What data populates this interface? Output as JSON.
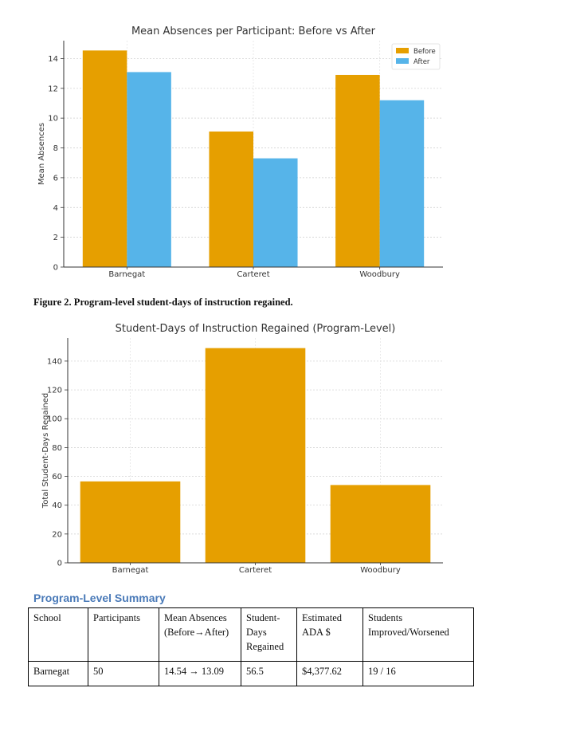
{
  "chart_data": [
    {
      "type": "bar",
      "title": "Mean Absences per Participant: Before vs After",
      "xlabel": "",
      "ylabel": "Mean Absences",
      "categories": [
        "Barnegat",
        "Carteret",
        "Woodbury"
      ],
      "series": [
        {
          "name": "Before",
          "values": [
            14.54,
            9.1,
            12.9
          ],
          "color": "#e69f00"
        },
        {
          "name": "After",
          "values": [
            13.09,
            7.3,
            11.2
          ],
          "color": "#56b4e9"
        }
      ],
      "ylim": [
        0,
        15.2
      ],
      "yticks": [
        0,
        2,
        4,
        6,
        8,
        10,
        12,
        14
      ],
      "grid": true,
      "legend": "top-right"
    },
    {
      "type": "bar",
      "title": "Student-Days of Instruction Regained (Program-Level)",
      "xlabel": "",
      "ylabel": "Total Student-Days Regained",
      "categories": [
        "Barnegat",
        "Carteret",
        "Woodbury"
      ],
      "values": [
        56.5,
        149,
        54
      ],
      "color": "#e69f00",
      "ylim": [
        0,
        156
      ],
      "yticks": [
        0,
        20,
        40,
        60,
        80,
        100,
        120,
        140
      ],
      "grid": true
    }
  ],
  "figure2_caption": "Figure 2. Program-level student-days of instruction regained.",
  "summary": {
    "title": "Program-Level Summary",
    "headers": [
      "School",
      "Participants",
      "Mean Absences (Before→After)",
      "Student-Days Regained",
      "Estimated ADA $",
      "Students Improved/Worsened"
    ],
    "rows": [
      [
        "Barnegat",
        "50",
        "14.54 → 13.09",
        "56.5",
        "$4,377.62",
        "19 / 16"
      ]
    ]
  }
}
